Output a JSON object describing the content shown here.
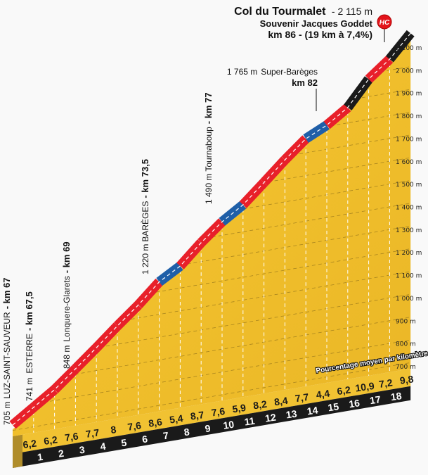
{
  "chart_data": {
    "type": "area",
    "title": "Col du Tourmalet",
    "title_suffix": "- 2 115 m",
    "subtitle": "Souvenir Jacques Goddet",
    "climb_info": "km 86 - (19 km à 7,4%)",
    "category": "HC",
    "x_label": "km",
    "km_ticks": [
      "1",
      "2",
      "3",
      "4",
      "5",
      "6",
      "7",
      "8",
      "9",
      "10",
      "11",
      "12",
      "13",
      "14",
      "15",
      "16",
      "17",
      "18"
    ],
    "gradients": [
      "6,2",
      "6,2",
      "7,6",
      "7,7",
      "8",
      "7,6",
      "8,6",
      "5,4",
      "8,7",
      "7,6",
      "5,9",
      "8,2",
      "8,4",
      "7,7",
      "4,4",
      "6,2",
      "10,9",
      "7,2",
      "9,8"
    ],
    "gradient_values": [
      6.2,
      6.2,
      7.6,
      7.7,
      8,
      7.6,
      8.6,
      5.4,
      8.7,
      7.6,
      5.9,
      8.2,
      8.4,
      7.7,
      4.4,
      6.2,
      10.9,
      7.2,
      9.8
    ],
    "start_elevation_m": 705,
    "summit_elevation_m": 2115,
    "y_ticks": [
      "700 m",
      "800 m",
      "900 m",
      "1 000 m",
      "1 100 m",
      "1 200 m",
      "1 300 m",
      "1 400 m",
      "1 500 m",
      "1 600 m",
      "1 700 m",
      "1 800 m",
      "1 900 m",
      "2 000 m",
      "2 100 m"
    ],
    "ylim": [
      700,
      2100
    ],
    "legend_caption": "Pourcentage moyen par kilomètre",
    "colors": {
      "easy": "#1f5fa8",
      "medium": "#e8202a",
      "hard": "#1a1a1a",
      "terrain": "#f1c232",
      "badge": "#e3141b"
    },
    "annotations": [
      {
        "elev": "705 m",
        "name": "LUZ-SAINT-SAUVEUR",
        "km": "- km 67"
      },
      {
        "elev": "741 m",
        "name": "ESTERRE",
        "km": "- km 67,5"
      },
      {
        "elev": "848 m",
        "name": "Lonquere-Glarets",
        "km": "- km 69"
      },
      {
        "elev": "1 220 m",
        "name": "BARÈGES",
        "km": "- km 73,5"
      },
      {
        "elev": "1 490 m",
        "name": "Tournaboup",
        "km": "- km 77"
      },
      {
        "elev": "1 765 m",
        "name": "Super-Barèges",
        "km": "km 82"
      }
    ]
  }
}
